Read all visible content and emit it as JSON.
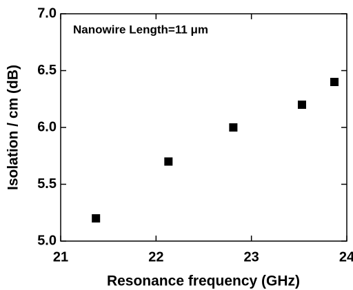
{
  "chart_data": {
    "type": "scatter",
    "xlabel": "Resonance frequency (GHz)",
    "ylabel": "Isolation / cm   (dB)",
    "annotation": "Nanowire Length=11 μm",
    "series": [
      {
        "color": "#000000",
        "x": [
          21.37,
          22.13,
          22.81,
          23.53,
          23.87
        ],
        "values": [
          5.2,
          5.7,
          6.0,
          6.2,
          6.4
        ]
      }
    ],
    "xlim": [
      21,
      24
    ],
    "xticks": [
      21,
      22,
      23,
      24
    ],
    "ylim": [
      5.0,
      7.0
    ],
    "yticks": [
      {
        "value": 5.0,
        "label": "5.0"
      },
      {
        "value": 5.5,
        "label": "5.5"
      },
      {
        "value": 6.0,
        "label": "6.0"
      },
      {
        "value": 6.5,
        "label": "6.5"
      },
      {
        "value": 7.0,
        "label": "7.0"
      }
    ]
  }
}
